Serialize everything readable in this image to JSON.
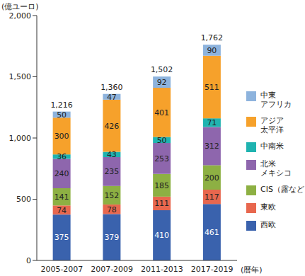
{
  "chart_data": {
    "type": "bar",
    "stacked": true,
    "data_labels": true,
    "grid": false,
    "legend": "right",
    "y_label": "(億ユーロ)",
    "x_label": "(暦年)",
    "categories": [
      "2005-2007",
      "2007-2009",
      "2011-2013",
      "2017-2019"
    ],
    "ylim": [
      0,
      2000
    ],
    "yticks": [
      0,
      500,
      {
        "value": 1000,
        "label": "1,000"
      },
      {
        "value": 1500,
        "label": "1,500"
      },
      {
        "value": 2000,
        "label": "2,000"
      }
    ],
    "series": [
      {
        "name": "西欧",
        "color": "#3a62ad",
        "values": [
          375,
          379,
          410,
          461
        ]
      },
      {
        "name": "東欧",
        "color": "#e8674e",
        "values": [
          74,
          78,
          111,
          117
        ]
      },
      {
        "name": "CIS（露など）",
        "color": "#8db043",
        "values": [
          141,
          152,
          185,
          200
        ]
      },
      {
        "name": "北米\nメキシコ",
        "color": "#8e66ad",
        "values": [
          240,
          235,
          253,
          312
        ]
      },
      {
        "name": "中南米",
        "color": "#1fb3b0",
        "values": [
          36,
          43,
          50,
          71
        ]
      },
      {
        "name": "アジア\n太平洋",
        "color": "#f6a12b",
        "values": [
          300,
          426,
          401,
          511
        ]
      },
      {
        "name": "中東\nアフリカ",
        "color": "#8db3dd",
        "values": [
          50,
          47,
          92,
          90
        ]
      }
    ],
    "totals": [
      1216,
      1360,
      1502,
      1762
    ],
    "total_labels": [
      "1,216",
      "1,360",
      "1,502",
      "1,762"
    ]
  }
}
